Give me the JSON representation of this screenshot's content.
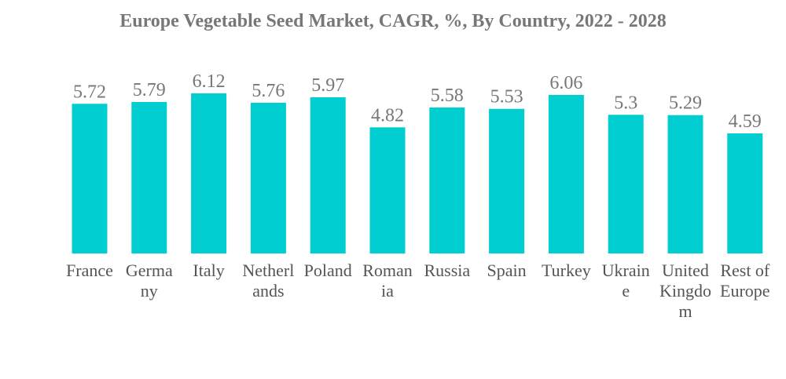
{
  "chart_data": {
    "type": "bar",
    "title": "Europe Vegetable Seed Market, CAGR, %, By Country, 2022 - 2028",
    "xlabel": "",
    "ylabel": "",
    "ylim": [
      0,
      6.12
    ],
    "grid": false,
    "legend": "none",
    "categories": [
      "France",
      "Germany",
      "Italy",
      "Netherlands",
      "Poland",
      "Romania",
      "Russia",
      "Spain",
      "Turkey",
      "Ukraine",
      "United Kingdom",
      "Rest of Europe"
    ],
    "category_lines": [
      [
        "France"
      ],
      [
        "Germa",
        "ny"
      ],
      [
        "Italy"
      ],
      [
        "Netherl",
        "ands"
      ],
      [
        "Poland"
      ],
      [
        "Roman",
        "ia"
      ],
      [
        "Russia"
      ],
      [
        "Spain"
      ],
      [
        "Turkey"
      ],
      [
        "Ukrain",
        "e"
      ],
      [
        "United",
        "Kingdo",
        "m"
      ],
      [
        "Rest of",
        "Europe"
      ]
    ],
    "values": [
      5.72,
      5.79,
      6.12,
      5.76,
      5.97,
      4.82,
      5.58,
      5.53,
      6.06,
      5.3,
      5.29,
      4.59
    ],
    "value_labels": [
      "5.72",
      "5.79",
      "6.12",
      "5.76",
      "5.97",
      "4.82",
      "5.58",
      "5.53",
      "6.06",
      "5.3",
      "5.29",
      "4.59"
    ],
    "colors": {
      "bar": "#00CED1",
      "value_text": "#777777",
      "category_text": "#555555",
      "title_text": "#777777"
    }
  }
}
